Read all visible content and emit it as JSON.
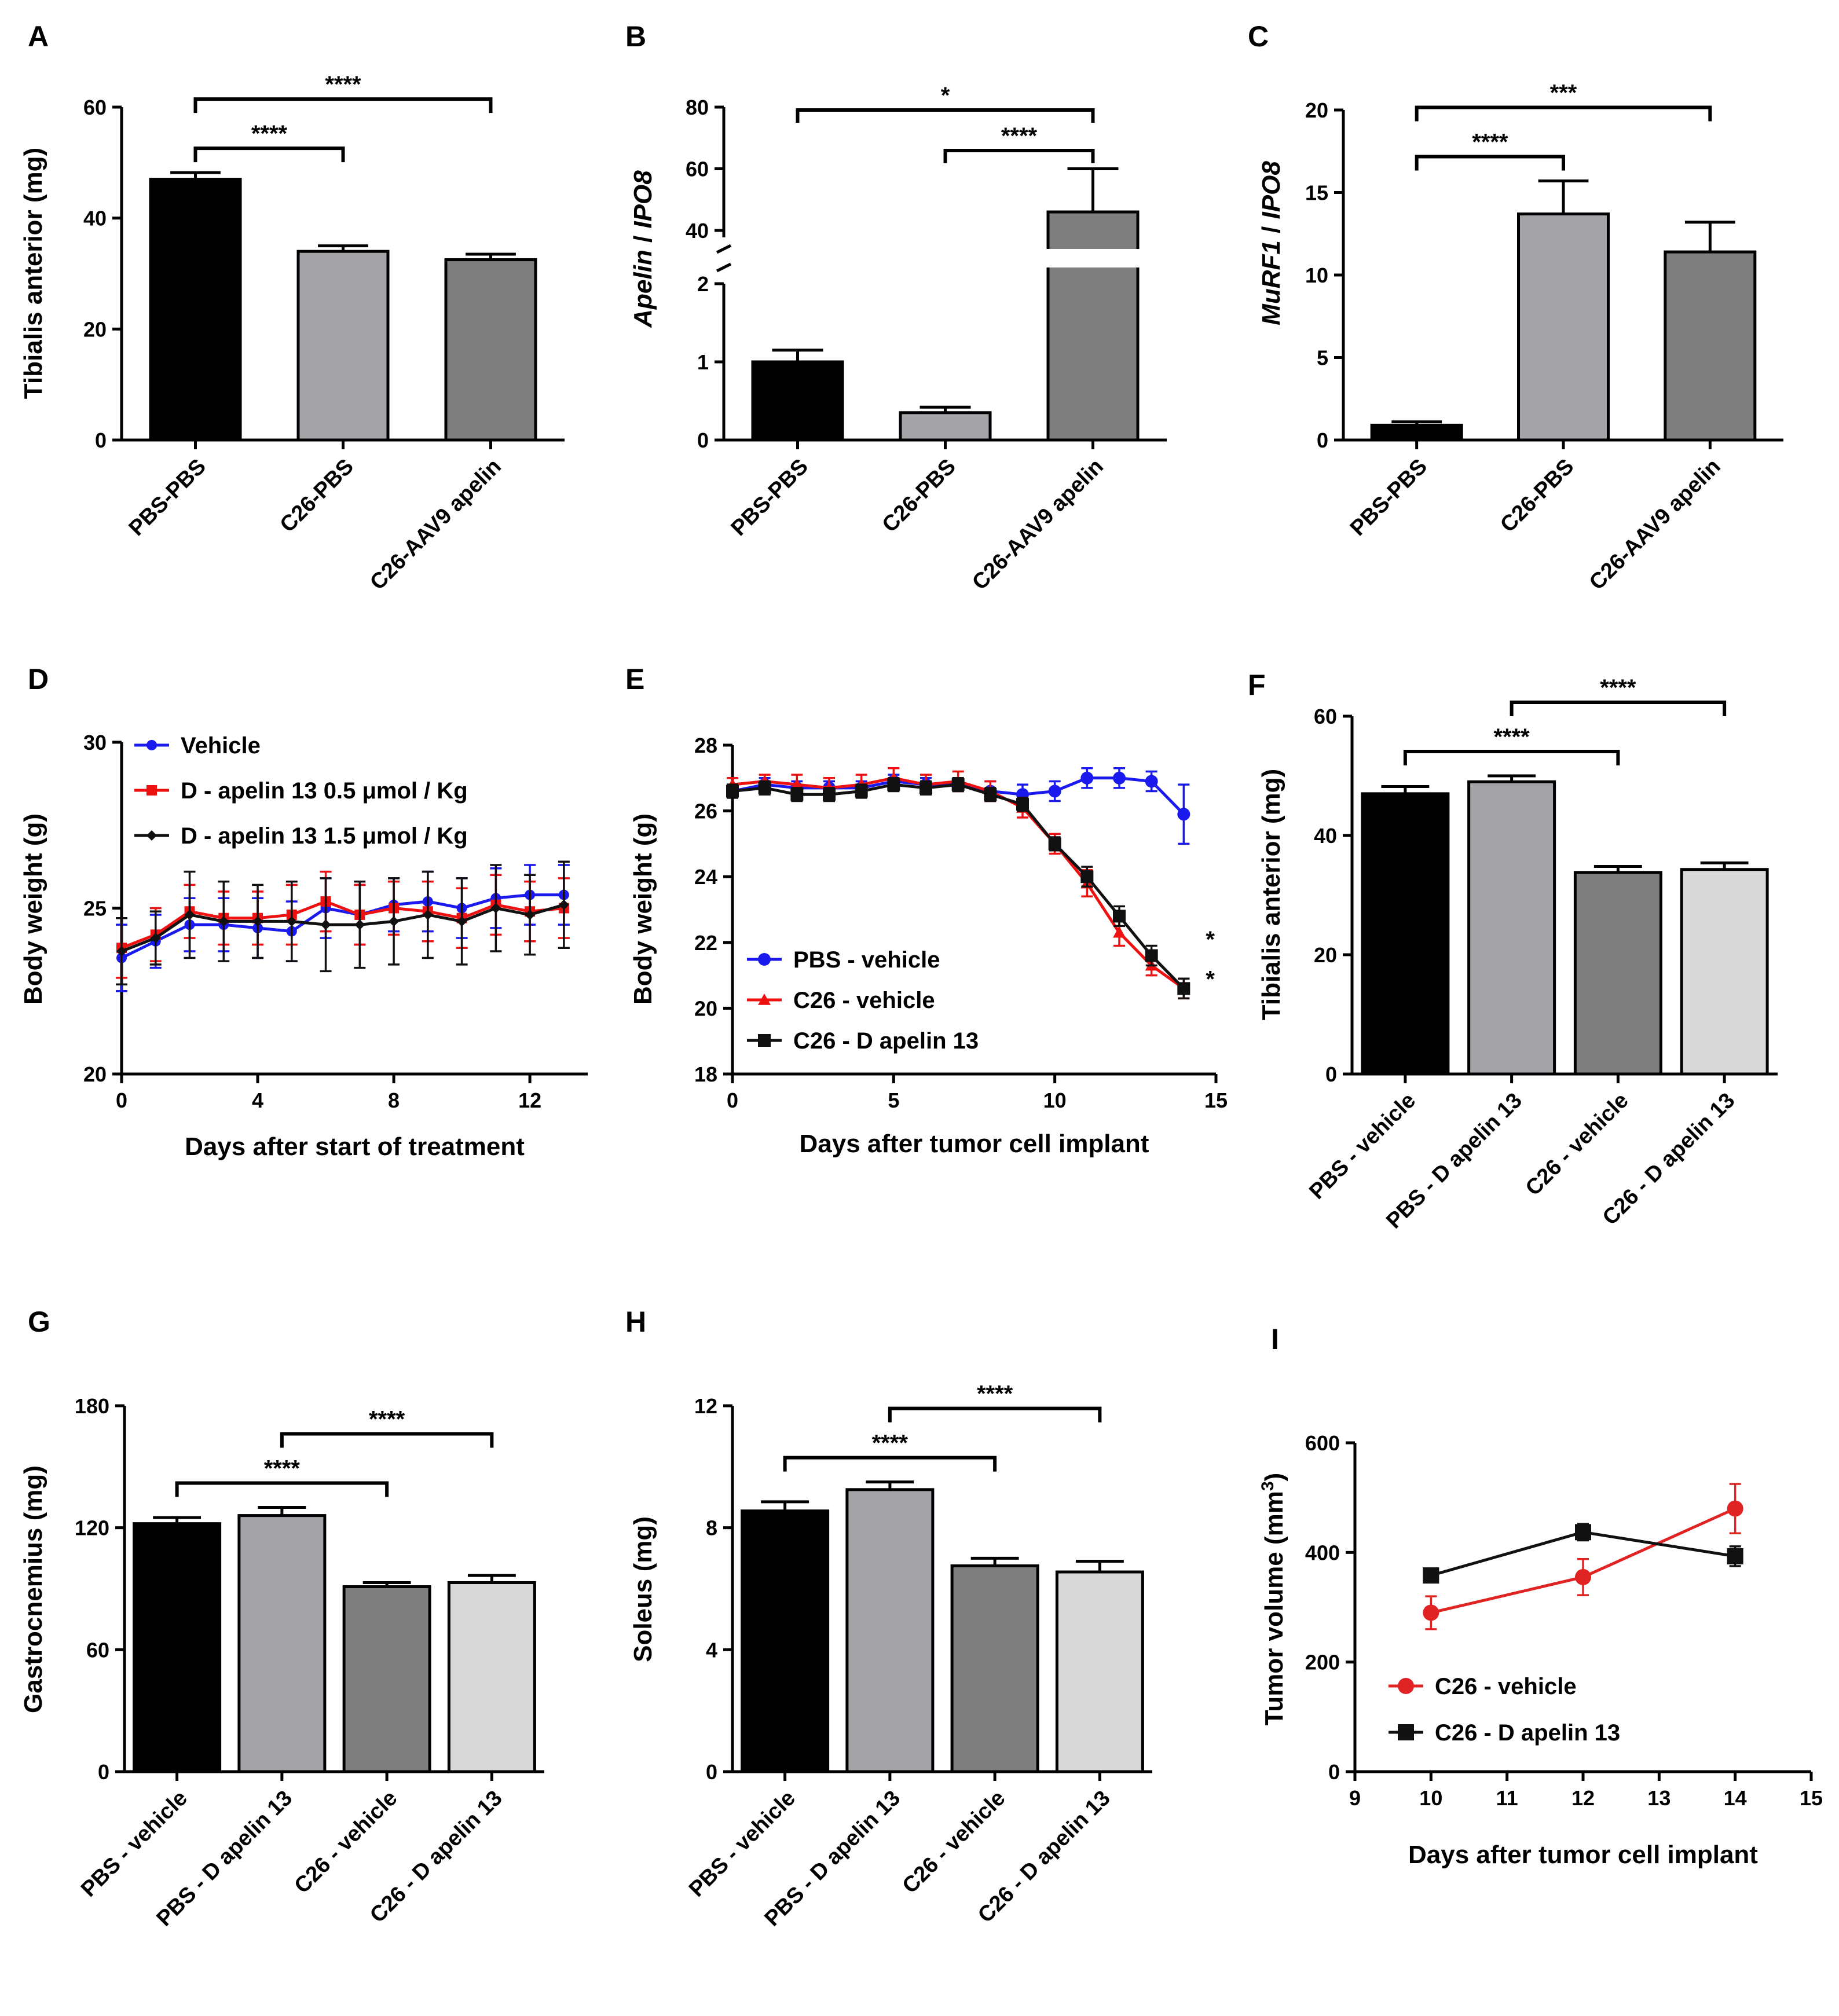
{
  "chart_data": [
    {
      "id": "A",
      "panel_label": "A",
      "type": "bar",
      "ylabel": "Tibialis anterior (mg)",
      "ylim": [
        0,
        60
      ],
      "yticks": [
        0,
        20,
        40,
        60
      ],
      "categories": [
        "PBS-PBS",
        "C26-PBS",
        "C26-AAV9 apelin"
      ],
      "values": [
        47,
        34,
        32.5
      ],
      "errors": [
        1.2,
        1,
        1
      ],
      "colors": [
        "#000000",
        "#a3a3a8",
        "#7e7e7e"
      ],
      "significance": [
        {
          "from": 0,
          "to": 1,
          "label": "****",
          "level": 0
        },
        {
          "from": 0,
          "to": 2,
          "label": "****",
          "level": 1
        }
      ]
    },
    {
      "id": "B",
      "panel_label": "B",
      "type": "bar",
      "broken_axis": true,
      "ylabel_parts": [
        "Apelin",
        " / ",
        "IPO8"
      ],
      "yticks_lower": [
        0,
        1,
        2
      ],
      "yticks_upper": [
        40,
        60,
        80
      ],
      "categories": [
        "PBS-PBS",
        "C26-PBS",
        "C26-AAV9 apelin"
      ],
      "values": [
        1.0,
        0.35,
        46
      ],
      "errors": [
        0.15,
        0.07,
        14
      ],
      "colors": [
        "#000000",
        "#a3a3a8",
        "#7e7e7e"
      ],
      "significance": [
        {
          "from": 1,
          "to": 2,
          "label": "****",
          "level": 0
        },
        {
          "from": 0,
          "to": 2,
          "label": "*",
          "level": 1
        }
      ]
    },
    {
      "id": "C",
      "panel_label": "C",
      "type": "bar",
      "ylabel_parts": [
        "MuRF1",
        " / ",
        "IPO8"
      ],
      "ylim": [
        0,
        20
      ],
      "yticks": [
        0,
        5,
        10,
        15,
        20
      ],
      "categories": [
        "PBS-PBS",
        "C26-PBS",
        "C26-AAV9 apelin"
      ],
      "values": [
        0.9,
        13.7,
        11.4
      ],
      "errors": [
        0.2,
        2,
        1.8
      ],
      "colors": [
        "#000000",
        "#a3a3a8",
        "#7e7e7e"
      ],
      "significance": [
        {
          "from": 0,
          "to": 1,
          "label": "****",
          "level": 0
        },
        {
          "from": 0,
          "to": 2,
          "label": "***",
          "level": 1
        }
      ]
    },
    {
      "id": "D",
      "panel_label": "D",
      "type": "line",
      "ylabel": "Body weight (g)",
      "xlabel": "Days after start of treatment",
      "xlim": [
        0,
        13.7
      ],
      "ylim": [
        20,
        30
      ],
      "xticks": [
        0,
        4,
        8,
        12
      ],
      "yticks": [
        20,
        25,
        30
      ],
      "series": [
        {
          "name": "Vehicle",
          "color": "#1a1aee",
          "marker": "circle",
          "x": [
            0,
            1,
            2,
            3,
            4,
            5,
            6,
            7,
            8,
            9,
            10,
            11,
            12,
            13
          ],
          "y": [
            23.5,
            24.0,
            24.5,
            24.5,
            24.4,
            24.3,
            25.0,
            24.8,
            25.1,
            25.2,
            25.0,
            25.3,
            25.4,
            25.4
          ],
          "err": [
            1.0,
            0.8,
            0.8,
            0.8,
            0.9,
            0.9,
            0.9,
            0.9,
            0.8,
            0.9,
            0.9,
            0.9,
            0.9,
            0.9
          ]
        },
        {
          "name": "D - apelin 13  0.5 μmol / Kg",
          "color": "#ee1111",
          "marker": "square",
          "x": [
            0,
            1,
            2,
            3,
            4,
            5,
            6,
            7,
            8,
            9,
            10,
            11,
            12,
            13
          ],
          "y": [
            23.8,
            24.2,
            24.9,
            24.7,
            24.7,
            24.8,
            25.2,
            24.8,
            25.0,
            24.9,
            24.7,
            25.1,
            24.9,
            25.0
          ],
          "err": [
            0.9,
            0.8,
            0.8,
            0.8,
            0.8,
            0.9,
            0.9,
            0.9,
            0.8,
            0.9,
            0.9,
            0.9,
            0.9,
            0.9
          ]
        },
        {
          "name": "D - apelin 13 1.5 μmol / Kg",
          "color": "#111111",
          "marker": "diamond",
          "x": [
            0,
            1,
            2,
            3,
            4,
            5,
            6,
            7,
            8,
            9,
            10,
            11,
            12,
            13
          ],
          "y": [
            23.7,
            24.1,
            24.8,
            24.6,
            24.6,
            24.6,
            24.5,
            24.5,
            24.6,
            24.8,
            24.6,
            25.0,
            24.8,
            25.1
          ],
          "err": [
            1.0,
            0.8,
            1.3,
            1.2,
            1.1,
            1.2,
            1.4,
            1.3,
            1.3,
            1.3,
            1.3,
            1.3,
            1.2,
            1.3
          ]
        }
      ]
    },
    {
      "id": "E",
      "panel_label": "E",
      "type": "line",
      "ylabel": "Body weight (g)",
      "xlabel": "Days after tumor cell implant",
      "xlim": [
        0,
        15
      ],
      "ylim": [
        18,
        28
      ],
      "xticks": [
        0,
        5,
        10,
        15
      ],
      "yticks": [
        18,
        20,
        22,
        24,
        26,
        28
      ],
      "series": [
        {
          "name": "PBS - vehicle",
          "color": "#1a1aee",
          "marker": "circle",
          "x": [
            0,
            1,
            2,
            3,
            4,
            5,
            6,
            7,
            8,
            9,
            10,
            11,
            12,
            13,
            14
          ],
          "y": [
            26.6,
            26.8,
            26.7,
            26.7,
            26.7,
            26.9,
            26.8,
            26.8,
            26.6,
            26.5,
            26.6,
            27.0,
            27.0,
            26.9,
            25.9
          ],
          "err": [
            0.2,
            0.2,
            0.2,
            0.2,
            0.2,
            0.2,
            0.2,
            0.2,
            0.3,
            0.3,
            0.3,
            0.3,
            0.3,
            0.3,
            0.9
          ]
        },
        {
          "name": "C26 - vehicle",
          "color": "#ee1111",
          "marker": "triangle",
          "x": [
            0,
            1,
            2,
            3,
            4,
            5,
            6,
            7,
            8,
            9,
            10,
            11,
            12,
            13,
            14
          ],
          "y": [
            26.8,
            26.9,
            26.8,
            26.7,
            26.8,
            27.0,
            26.8,
            26.9,
            26.6,
            26.1,
            25.0,
            23.8,
            22.3,
            21.3,
            20.6
          ],
          "err": [
            0.2,
            0.2,
            0.3,
            0.3,
            0.3,
            0.3,
            0.3,
            0.3,
            0.3,
            0.3,
            0.3,
            0.4,
            0.4,
            0.3,
            0.3
          ]
        },
        {
          "name": "C26 - D apelin 13",
          "color": "#111111",
          "marker": "square",
          "x": [
            0,
            1,
            2,
            3,
            4,
            5,
            6,
            7,
            8,
            9,
            10,
            11,
            12,
            13,
            14
          ],
          "y": [
            26.6,
            26.7,
            26.5,
            26.5,
            26.6,
            26.8,
            26.7,
            26.8,
            26.5,
            26.2,
            25.0,
            24.0,
            22.8,
            21.6,
            20.6
          ],
          "err": [
            0.2,
            0.2,
            0.2,
            0.2,
            0.2,
            0.2,
            0.2,
            0.2,
            0.2,
            0.2,
            0.2,
            0.3,
            0.3,
            0.3,
            0.3
          ]
        }
      ],
      "annotations": [
        {
          "text": "*",
          "x": 14.9,
          "y": 22.1
        },
        {
          "text": "*",
          "x": 14.9,
          "y": 20.9
        }
      ]
    },
    {
      "id": "F",
      "panel_label": "F",
      "type": "bar",
      "ylabel": "Tibialis anterior (mg)",
      "ylim": [
        0,
        60
      ],
      "yticks": [
        0,
        20,
        40,
        60
      ],
      "categories": [
        "PBS - vehicle",
        "PBS - D apelin 13",
        "C26 - vehicle",
        "C26 - D apelin 13"
      ],
      "values": [
        47,
        49,
        33.8,
        34.3
      ],
      "errors": [
        1.2,
        1.0,
        1.0,
        1.1
      ],
      "colors": [
        "#000000",
        "#a3a3a8",
        "#7e7e7e",
        "#d8d8d8"
      ],
      "significance": [
        {
          "from": 0,
          "to": 2,
          "label": "****",
          "level": 0
        },
        {
          "from": 1,
          "to": 3,
          "label": "****",
          "level": 1
        }
      ]
    },
    {
      "id": "G",
      "panel_label": "G",
      "type": "bar",
      "ylabel": "Gastrocnemius (mg)",
      "ylim": [
        0,
        180
      ],
      "yticks": [
        0,
        60,
        120,
        180
      ],
      "categories": [
        "PBS - vehicle",
        "PBS - D apelin 13",
        "C26 - vehicle",
        "C26 - D apelin 13"
      ],
      "values": [
        122,
        126,
        91,
        93
      ],
      "errors": [
        3,
        4,
        2,
        3.5
      ],
      "colors": [
        "#000000",
        "#a3a3a8",
        "#7e7e7e",
        "#d8d8d8"
      ],
      "significance": [
        {
          "from": 0,
          "to": 2,
          "label": "****",
          "level": 0
        },
        {
          "from": 1,
          "to": 3,
          "label": "****",
          "level": 1
        }
      ]
    },
    {
      "id": "H",
      "panel_label": "H",
      "type": "bar",
      "ylabel": "Soleus (mg)",
      "ylim": [
        0,
        12
      ],
      "yticks": [
        0,
        4,
        8,
        12
      ],
      "categories": [
        "PBS - vehicle",
        "PBS - D apelin 13",
        "C26 - vehicle",
        "C26 - D apelin 13"
      ],
      "values": [
        8.55,
        9.25,
        6.75,
        6.55
      ],
      "errors": [
        0.3,
        0.25,
        0.25,
        0.35
      ],
      "colors": [
        "#000000",
        "#a3a3a8",
        "#7e7e7e",
        "#d8d8d8"
      ],
      "significance": [
        {
          "from": 0,
          "to": 2,
          "label": "****",
          "level": 0
        },
        {
          "from": 1,
          "to": 3,
          "label": "****",
          "level": 1
        }
      ]
    },
    {
      "id": "I",
      "panel_label": "I",
      "type": "line",
      "ylabel": "Tumor volume (mm",
      "ylabel_sup": "3",
      "ylabel_end": ")",
      "xlabel": "Days after tumor cell implant",
      "xlim": [
        9,
        15
      ],
      "ylim": [
        0,
        600
      ],
      "xticks": [
        9,
        10,
        11,
        12,
        13,
        14,
        15
      ],
      "yticks": [
        0,
        200,
        400,
        600
      ],
      "series": [
        {
          "name": "C26 - vehicle",
          "color": "#e02424",
          "marker": "circle",
          "x": [
            10,
            12,
            14
          ],
          "y": [
            290,
            355,
            480
          ],
          "err": [
            30,
            33,
            45
          ]
        },
        {
          "name": "C26 - D apelin 13",
          "color": "#111111",
          "marker": "square",
          "x": [
            10,
            12,
            14
          ],
          "y": [
            358,
            437,
            393
          ],
          "err": [
            10,
            15,
            18
          ]
        }
      ]
    }
  ]
}
